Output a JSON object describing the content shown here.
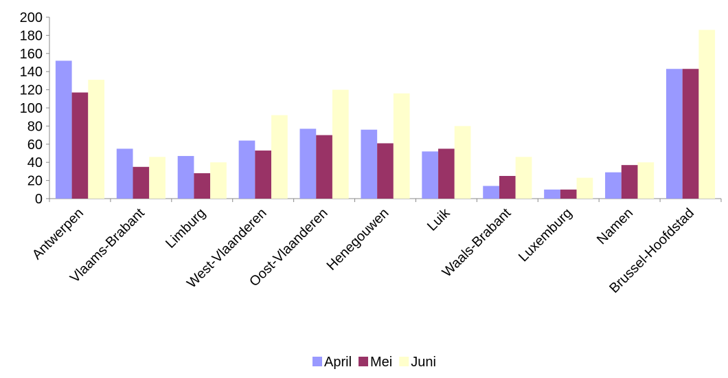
{
  "chart_data": {
    "type": "bar",
    "categories": [
      "Antwerpen",
      "Vlaams-Brabant",
      "Limburg",
      "West-Vlaanderen",
      "Oost-Vlaanderen",
      "Henegouwen",
      "Luik",
      "Waals-Brabant",
      "Luxemburg",
      "Namen",
      "Brussel-Hoofdstad"
    ],
    "series": [
      {
        "name": "April",
        "color": "#9999ff",
        "values": [
          152,
          55,
          47,
          64,
          77,
          76,
          52,
          14,
          10,
          29,
          143
        ]
      },
      {
        "name": "Mei",
        "color": "#993366",
        "values": [
          117,
          35,
          28,
          53,
          70,
          61,
          55,
          25,
          10,
          37,
          143
        ]
      },
      {
        "name": "Juni",
        "color": "#ffffcc",
        "values": [
          131,
          46,
          40,
          92,
          120,
          116,
          80,
          46,
          23,
          40,
          186
        ]
      }
    ],
    "ylim": [
      0,
      200
    ],
    "yticks": [
      0,
      20,
      40,
      60,
      80,
      100,
      120,
      140,
      160,
      180,
      200
    ],
    "grid": false,
    "legend": "bottom"
  }
}
